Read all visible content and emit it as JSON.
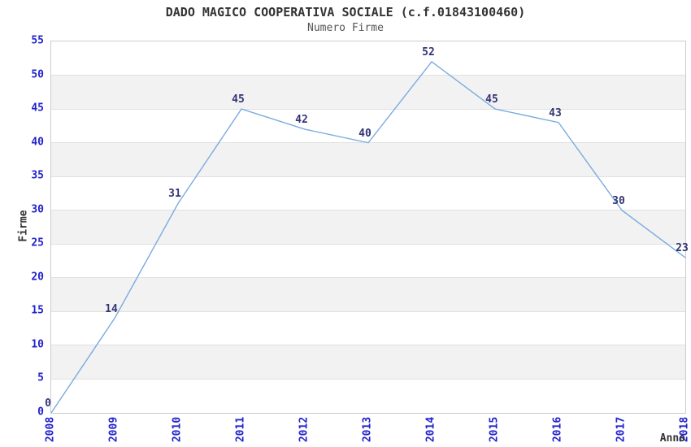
{
  "chart_data": {
    "type": "line",
    "title": "DADO MAGICO COOPERATIVA SOCIALE (c.f.01843100460)",
    "subtitle": "Numero Firme",
    "xlabel": "Anno",
    "ylabel": "Firme",
    "categories": [
      "2008",
      "2009",
      "2010",
      "2011",
      "2012",
      "2013",
      "2014",
      "2015",
      "2016",
      "2017",
      "2018"
    ],
    "values": [
      0,
      14,
      31,
      45,
      42,
      40,
      52,
      45,
      43,
      30,
      23
    ],
    "ylim": [
      0,
      55
    ],
    "ytick_step": 5,
    "grid": true,
    "band_fill": true,
    "legend": "none",
    "point_labels_shown": true,
    "colors": {
      "line": "#7aabdf",
      "tick_label": "#2222cc",
      "value_label": "#333377",
      "band": "#f2f2f2",
      "gridline": "#e0e0e0",
      "plot_border": "#cccccc",
      "title": "#333333",
      "subtitle": "#555555",
      "axis_title": "#333333"
    }
  }
}
